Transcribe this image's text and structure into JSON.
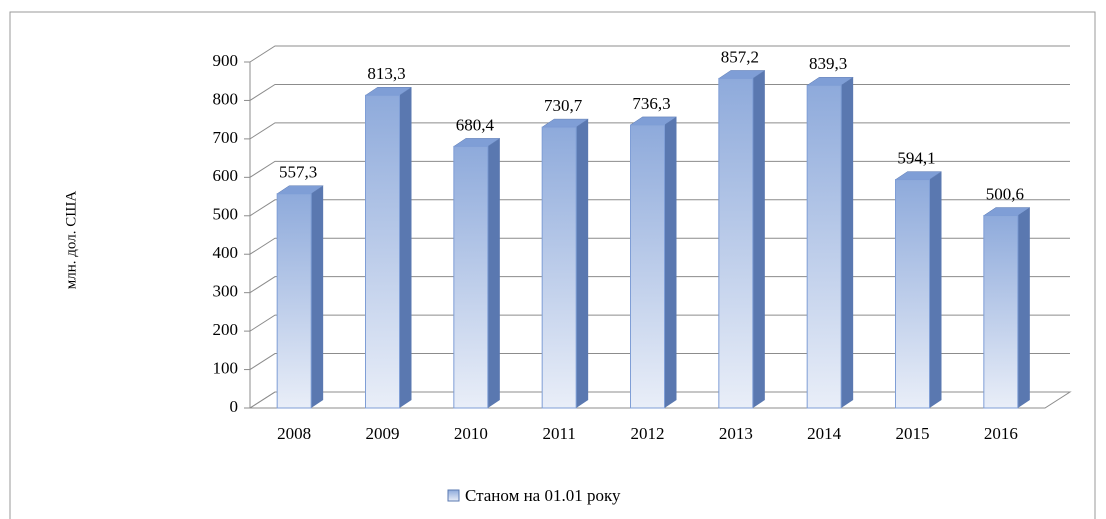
{
  "chart_data": {
    "type": "bar",
    "y_label": "млн. дол. США",
    "categories": [
      "2008",
      "2009",
      "2010",
      "2011",
      "2012",
      "2013",
      "2014",
      "2015",
      "2016"
    ],
    "series": [
      {
        "name": "Станом на 01.01 року",
        "color": "#8eaadb",
        "values": [
          557.3,
          813.3,
          680.4,
          730.7,
          736.3,
          857.2,
          839.3,
          594.1,
          500.6
        ],
        "value_labels": [
          "557,3",
          "813,3",
          "680,4",
          "730,7",
          "736,3",
          "857,2",
          "839,3",
          "594,1",
          "500,6"
        ]
      }
    ],
    "ylim": [
      0,
      900
    ],
    "yticks": [
      0,
      100,
      200,
      300,
      400,
      500,
      600,
      700,
      800,
      900
    ],
    "grid": true
  }
}
